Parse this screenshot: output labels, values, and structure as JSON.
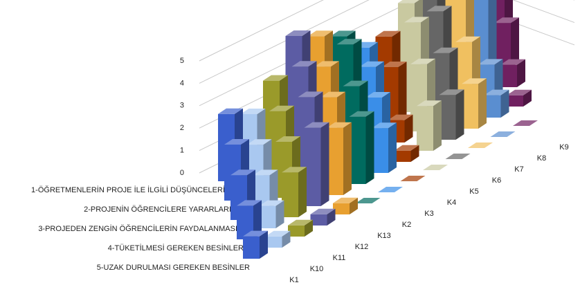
{
  "chart_data": {
    "type": "bar3d",
    "categories": [
      "K1",
      "K10",
      "K11",
      "K12",
      "K13",
      "K2",
      "K3",
      "K4",
      "K5",
      "K6",
      "K7",
      "K8",
      "K9"
    ],
    "colors": [
      "#3a5fcd",
      "#a9c8f0",
      "#9a9a2a",
      "#5c5ca4",
      "#e8a030",
      "#006b5f",
      "#3a8ee8",
      "#a33a00",
      "#c9c9a0",
      "#666666",
      "#f0c060",
      "#5a8ed0",
      "#702060"
    ],
    "series": [
      {
        "name": "1-ÖĞRETMENLERİN PROJE İLE İLGİLİ DÜŞÜNCELERİ",
        "values": [
          3,
          2.5,
          3.5,
          5,
          4.5,
          4,
          3,
          3,
          4,
          4,
          4.5,
          4.5,
          4.5
        ]
      },
      {
        "name": "2-PROJENİN ÖĞRENCİLERE YARARLARI",
        "values": [
          2.5,
          2,
          3,
          4.5,
          4,
          4.5,
          3,
          2.5,
          4,
          4,
          4.5,
          4,
          2
        ]
      },
      {
        "name": "3-PROJEDEN ZENGİN ÖĞRENCİLERİN FAYDALANMASI",
        "values": [
          2,
          1.5,
          2.5,
          4,
          3.5,
          3.5,
          2.5,
          1,
          3,
          3,
          3,
          1.5,
          1
        ]
      },
      {
        "name": "4-TÜKETİLMESİ GEREKEN BESİNLER",
        "values": [
          1.5,
          1,
          2,
          3.5,
          3,
          3,
          2,
          0.5,
          2,
          2,
          2,
          1,
          0.5
        ]
      },
      {
        "name": "5-UZAK DURULMASI GEREKEN BESİNLER",
        "values": [
          1,
          0.5,
          0.5,
          0.5,
          0.5,
          0,
          0,
          0,
          0,
          0,
          0,
          0,
          0
        ]
      }
    ],
    "ylim": [
      0,
      5
    ],
    "yticks": [
      0,
      1,
      2,
      3,
      4,
      5
    ],
    "grid": true
  }
}
